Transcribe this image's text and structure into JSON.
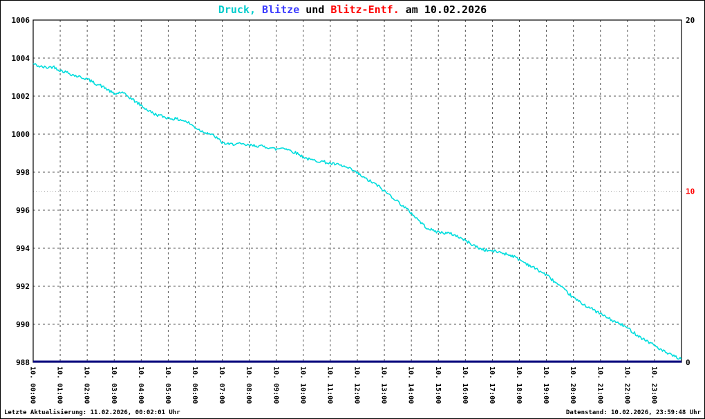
{
  "title": {
    "parts": [
      {
        "text": "Druck,",
        "color": "#00cccc"
      },
      {
        "text": " Blitze",
        "color": "#3c3cff"
      },
      {
        "text": " und ",
        "color": "#000000"
      },
      {
        "text": "Blitz-Entf.",
        "color": "#ff0000"
      },
      {
        "text": " am 10.02.2026",
        "color": "#000000"
      }
    ]
  },
  "footer": {
    "left": "Letzte Aktualisierung: 11.02.2026, 00:02:01 Uhr",
    "right": "Datenstand: 10.02.2026, 23:59:48 Uhr"
  },
  "chart_data": {
    "type": "line",
    "title": "Druck, Blitze und Blitz-Entf. am 10.02.2026",
    "grid": {
      "vertical": "hourly dashed",
      "horizontal": "every 2 hPa dashed",
      "extra_dotted_line_at_right_value": 10
    },
    "x_axis": {
      "range_hours": [
        0,
        24
      ],
      "tick_labels": [
        "10. 00:00",
        "10. 01:00",
        "10. 02:00",
        "10. 03:00",
        "10. 04:00",
        "10. 05:00",
        "10. 06:00",
        "10. 07:00",
        "10. 08:00",
        "10. 09:00",
        "10. 10:00",
        "10. 11:00",
        "10. 12:00",
        "10. 13:00",
        "10. 14:00",
        "10. 15:00",
        "10. 16:00",
        "10. 17:00",
        "10. 18:00",
        "10. 19:00",
        "10. 20:00",
        "10. 21:00",
        "10. 22:00",
        "10. 23:00"
      ]
    },
    "y_left": {
      "range": [
        988,
        1006
      ],
      "ticks": [
        988,
        990,
        992,
        994,
        996,
        998,
        1000,
        1002,
        1004,
        1006
      ],
      "tick_color": "#000000"
    },
    "y_right": {
      "range": [
        0,
        20
      ],
      "ticks": [
        {
          "value": 20,
          "color": "#000000"
        },
        {
          "value": 10,
          "color": "#ff0000"
        },
        {
          "value": 0,
          "color": "#000000"
        }
      ]
    },
    "series": [
      {
        "name": "Druck",
        "color": "#00dddd",
        "axis": "left",
        "points": [
          [
            0,
            1003.7
          ],
          [
            0.25,
            1003.55
          ],
          [
            0.5,
            1003.5
          ],
          [
            0.75,
            1003.55
          ],
          [
            1,
            1003.35
          ],
          [
            1.25,
            1003.25
          ],
          [
            1.5,
            1003.1
          ],
          [
            1.75,
            1003.0
          ],
          [
            2,
            1002.9
          ],
          [
            2.25,
            1002.7
          ],
          [
            2.5,
            1002.55
          ],
          [
            2.75,
            1002.35
          ],
          [
            3,
            1002.1
          ],
          [
            3.25,
            1002.2
          ],
          [
            3.5,
            1002.0
          ],
          [
            3.75,
            1001.75
          ],
          [
            4,
            1001.5
          ],
          [
            4.25,
            1001.25
          ],
          [
            4.5,
            1001.05
          ],
          [
            4.75,
            1000.95
          ],
          [
            5,
            1000.85
          ],
          [
            5.25,
            1000.8
          ],
          [
            5.5,
            1000.75
          ],
          [
            5.75,
            1000.6
          ],
          [
            6,
            1000.35
          ],
          [
            6.25,
            1000.15
          ],
          [
            6.5,
            1000.05
          ],
          [
            6.75,
            999.85
          ],
          [
            7,
            999.55
          ],
          [
            7.25,
            999.45
          ],
          [
            7.5,
            999.5
          ],
          [
            7.75,
            999.45
          ],
          [
            8,
            999.4
          ],
          [
            8.25,
            999.4
          ],
          [
            8.5,
            999.35
          ],
          [
            8.75,
            999.3
          ],
          [
            9,
            999.2
          ],
          [
            9.25,
            999.3
          ],
          [
            9.5,
            999.15
          ],
          [
            9.75,
            999.0
          ],
          [
            10,
            998.8
          ],
          [
            10.25,
            998.65
          ],
          [
            10.5,
            998.6
          ],
          [
            10.75,
            998.55
          ],
          [
            11,
            998.45
          ],
          [
            11.25,
            998.4
          ],
          [
            11.5,
            998.3
          ],
          [
            11.75,
            998.15
          ],
          [
            12,
            997.95
          ],
          [
            12.25,
            997.7
          ],
          [
            12.5,
            997.5
          ],
          [
            12.75,
            997.3
          ],
          [
            13,
            997.0
          ],
          [
            13.25,
            996.75
          ],
          [
            13.5,
            996.45
          ],
          [
            13.75,
            996.15
          ],
          [
            14,
            995.85
          ],
          [
            14.25,
            995.5
          ],
          [
            14.5,
            995.15
          ],
          [
            14.75,
            994.95
          ],
          [
            15,
            994.85
          ],
          [
            15.25,
            994.8
          ],
          [
            15.5,
            994.75
          ],
          [
            15.75,
            994.6
          ],
          [
            16,
            994.4
          ],
          [
            16.25,
            994.2
          ],
          [
            16.5,
            994.0
          ],
          [
            16.75,
            993.9
          ],
          [
            17,
            993.85
          ],
          [
            17.25,
            993.8
          ],
          [
            17.5,
            993.7
          ],
          [
            17.75,
            993.6
          ],
          [
            18,
            993.4
          ],
          [
            18.25,
            993.2
          ],
          [
            18.5,
            993.0
          ],
          [
            18.75,
            992.8
          ],
          [
            19,
            992.6
          ],
          [
            19.25,
            992.3
          ],
          [
            19.5,
            992.0
          ],
          [
            19.75,
            991.7
          ],
          [
            20,
            991.4
          ],
          [
            20.25,
            991.15
          ],
          [
            20.5,
            990.95
          ],
          [
            20.75,
            990.75
          ],
          [
            21,
            990.55
          ],
          [
            21.25,
            990.35
          ],
          [
            21.5,
            990.15
          ],
          [
            21.75,
            990.0
          ],
          [
            22,
            989.8
          ],
          [
            22.25,
            989.55
          ],
          [
            22.5,
            989.3
          ],
          [
            22.75,
            989.1
          ],
          [
            23,
            988.9
          ],
          [
            23.25,
            988.65
          ],
          [
            23.5,
            988.45
          ],
          [
            23.75,
            988.3
          ],
          [
            24,
            988.15
          ]
        ]
      },
      {
        "name": "Blitze",
        "color": "#000080",
        "axis": "right",
        "points": [
          [
            0,
            0
          ],
          [
            24,
            0
          ]
        ]
      },
      {
        "name": "Blitz-Entf.",
        "color": "#ff0000",
        "axis": "right",
        "points": []
      }
    ]
  }
}
